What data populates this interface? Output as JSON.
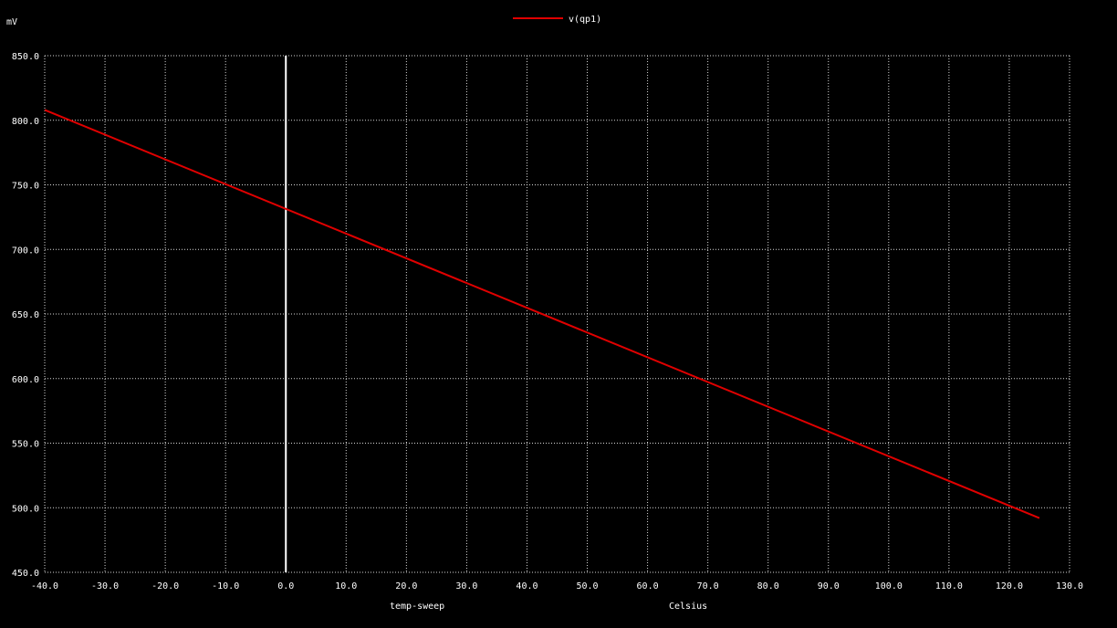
{
  "chart_data": {
    "type": "line",
    "ylabel": "mV",
    "xlabel_left": "temp-sweep",
    "xlabel_right": "Celsius",
    "xlim": [
      -40.0,
      130.0
    ],
    "ylim": [
      450.0,
      850.0
    ],
    "x_ticks": [
      "-40.0",
      "-30.0",
      "-20.0",
      "-10.0",
      "0.0",
      "10.0",
      "20.0",
      "30.0",
      "40.0",
      "50.0",
      "60.0",
      "70.0",
      "80.0",
      "90.0",
      "100.0",
      "110.0",
      "120.0",
      "130.0"
    ],
    "y_ticks": [
      "450.0",
      "500.0",
      "550.0",
      "600.0",
      "650.0",
      "700.0",
      "750.0",
      "800.0",
      "850.0"
    ],
    "grid": true,
    "legend_position": "top-center",
    "marker_x": 0.0,
    "series": [
      {
        "name": "v(qp1)",
        "color": "#e00000",
        "x": [
          -40.0,
          125.0
        ],
        "y": [
          808.0,
          492.0
        ]
      }
    ],
    "colors": {
      "background": "#000000",
      "grid": "#ffffff",
      "text": "#ffffff",
      "marker": "#ffffff"
    }
  }
}
